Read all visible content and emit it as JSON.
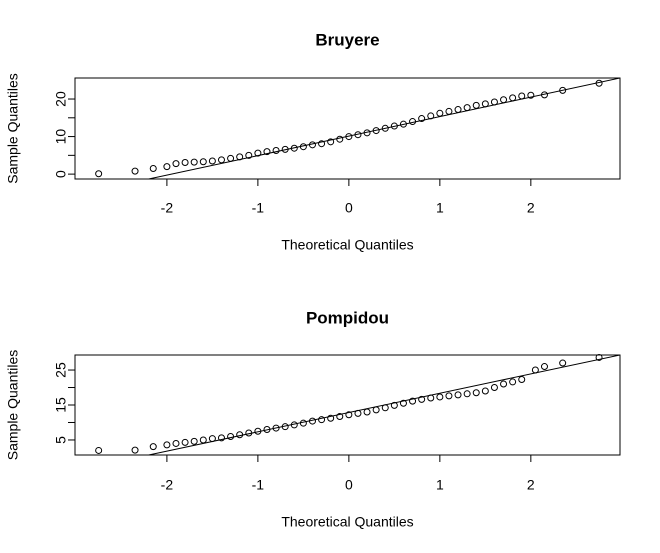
{
  "chart_data": [
    {
      "type": "scatter",
      "title": "Bruyere",
      "x_label": "Theoretical Quantiles",
      "y_label": "Sample Quantiles",
      "xlim": [
        -3.01,
        2.98
      ],
      "ylim": [
        -1.3,
        25.6
      ],
      "xticks": [
        -2,
        -1,
        0,
        1,
        2
      ],
      "yticks": [
        0,
        10,
        20
      ],
      "yticks_minor": [
        5,
        15
      ],
      "color": "#000000",
      "x": [
        -2.75,
        -2.35,
        -2.15,
        -2.0,
        -1.9,
        -1.8,
        -1.7,
        -1.6,
        -1.5,
        -1.4,
        -1.3,
        -1.2,
        -1.1,
        -1.0,
        -0.9,
        -0.8,
        -0.7,
        -0.6,
        -0.5,
        -0.4,
        -0.3,
        -0.2,
        -0.1,
        0,
        0.1,
        0.2,
        0.3,
        0.4,
        0.5,
        0.6,
        0.7,
        0.8,
        0.9,
        1.0,
        1.1,
        1.2,
        1.3,
        1.4,
        1.5,
        1.6,
        1.7,
        1.8,
        1.9,
        2.0,
        2.15,
        2.35,
        2.75
      ],
      "values": [
        0.1,
        0.8,
        1.5,
        2.0,
        2.8,
        3.1,
        3.2,
        3.3,
        3.5,
        3.8,
        4.2,
        4.6,
        5.0,
        5.6,
        6.0,
        6.3,
        6.6,
        6.9,
        7.3,
        7.8,
        8.1,
        8.6,
        9.3,
        10.0,
        10.5,
        11.0,
        11.6,
        12.2,
        12.8,
        13.3,
        14.0,
        14.8,
        15.5,
        16.2,
        16.7,
        17.2,
        17.7,
        18.3,
        18.7,
        19.2,
        19.8,
        20.3,
        20.8,
        21.0,
        21.1,
        22.3,
        24.2
      ],
      "reference_line": {
        "x": [
          -2.2,
          2.98
        ],
        "y": [
          -1.3,
          25.6
        ]
      }
    },
    {
      "type": "scatter",
      "title": "Pompidou",
      "x_label": "Theoretical Quantiles",
      "y_label": "Sample Quantiles",
      "xlim": [
        -3.01,
        2.98
      ],
      "ylim": [
        0.7,
        29.3
      ],
      "xticks": [
        -2,
        -1,
        0,
        1,
        2
      ],
      "yticks": [
        5,
        15,
        25
      ],
      "yticks_minor": [
        10,
        20
      ],
      "color": "#000000",
      "x": [
        -2.75,
        -2.35,
        -2.15,
        -2.0,
        -1.9,
        -1.8,
        -1.7,
        -1.6,
        -1.5,
        -1.4,
        -1.3,
        -1.2,
        -1.1,
        -1.0,
        -0.9,
        -0.8,
        -0.7,
        -0.6,
        -0.5,
        -0.4,
        -0.3,
        -0.2,
        -0.1,
        0,
        0.1,
        0.2,
        0.3,
        0.4,
        0.5,
        0.6,
        0.7,
        0.8,
        0.9,
        1.0,
        1.1,
        1.2,
        1.3,
        1.4,
        1.5,
        1.6,
        1.7,
        1.8,
        1.9,
        2.05,
        2.15,
        2.35,
        2.75
      ],
      "values": [
        2.0,
        2.1,
        3.1,
        3.6,
        4.0,
        4.3,
        4.6,
        5.0,
        5.4,
        5.6,
        6.0,
        6.5,
        7.0,
        7.5,
        8.0,
        8.4,
        8.8,
        9.3,
        9.8,
        10.4,
        10.8,
        11.2,
        11.7,
        12.2,
        12.6,
        13.0,
        13.6,
        14.2,
        14.9,
        15.5,
        16.1,
        16.6,
        17.0,
        17.3,
        17.6,
        17.9,
        18.2,
        18.5,
        19.0,
        20.0,
        21.0,
        21.6,
        22.3,
        25.0,
        26.0,
        27.0,
        28.6
      ],
      "reference_line": {
        "x": [
          -2.2,
          2.98
        ],
        "y": [
          0.7,
          29.3
        ]
      }
    }
  ]
}
